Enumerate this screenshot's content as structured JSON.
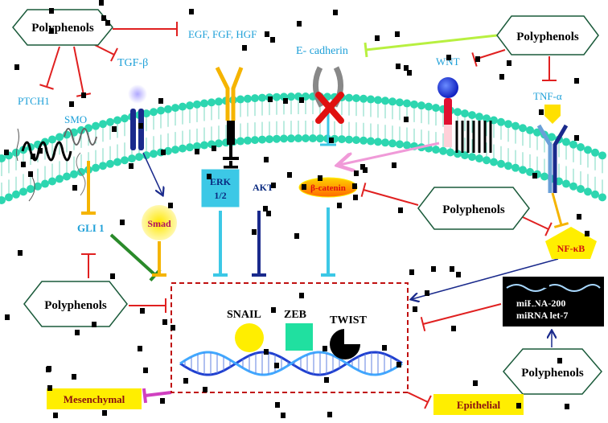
{
  "polyphenols": {
    "top_left": "Polyphenols",
    "top_right": "Polyphenols",
    "mid_right": "Polyphenols",
    "bottom_left": "Polyphenols",
    "bottom_right": "Polyphenols"
  },
  "labels": {
    "growth_factors": "EGF, FGF, HGF",
    "e_cadherin": "E- cadherin",
    "wnt": "WNT",
    "tgf_beta": "TGF-β",
    "ptch1": "PTCH1",
    "smo": "SMO",
    "tnf_alpha": "TNF-α",
    "gli1": "GLI 1",
    "smad": "Smad",
    "erk_line1": "ERK",
    "erk_line2": "1/2",
    "akt": "AKT",
    "beta_catenin": "β-catenin",
    "nfkb": "NF-κB",
    "mirna_line1": "miRNA-200",
    "mirna_line2": "miRNA let-7",
    "snail": "SNAIL",
    "zeb": "ZEB",
    "twist": "TWIST",
    "mesenchymal": "Mesenchymal",
    "epithelial": "Epithelial"
  },
  "colors": {
    "inhibit": "#e02020",
    "label_blue": "#1ea0d8",
    "membrane": "#2dd6b0",
    "gold": "#f5b400",
    "cyan": "#3cc8e6",
    "navy": "#1a2a8c",
    "lime": "#b8f040",
    "pink": "#f09ad8",
    "green": "#2a8a2a",
    "magenta": "#d040c0",
    "yellow_box": "#ffee00"
  }
}
